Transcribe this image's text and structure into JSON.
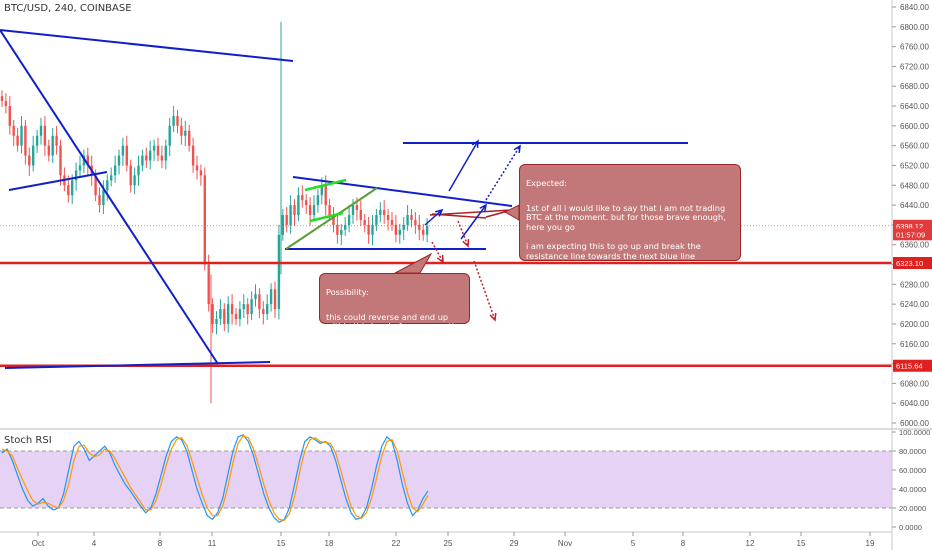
{
  "header": {
    "title": "BTC/USD, 240, COINBASE"
  },
  "indicator": {
    "title": "Stoch RSI"
  },
  "chart_data": [
    {
      "type": "candlestick",
      "symbol": "BTC/USD",
      "x_ticks": [
        {
          "label": "Oct",
          "bar": 38
        },
        {
          "label": "4",
          "bar": 94
        },
        {
          "label": "8",
          "bar": 160
        },
        {
          "label": "11",
          "bar": 212
        },
        {
          "label": "15",
          "bar": 281
        },
        {
          "label": "18",
          "bar": 329
        },
        {
          "label": "22",
          "bar": 396
        },
        {
          "label": "25",
          "bar": 448
        },
        {
          "label": "29",
          "bar": 514
        },
        {
          "label": "Nov",
          "bar": 565
        },
        {
          "label": "5",
          "bar": 633
        },
        {
          "label": "8",
          "bar": 683
        },
        {
          "label": "12",
          "bar": 750
        },
        {
          "label": "15",
          "bar": 801
        },
        {
          "label": "19",
          "bar": 870
        }
      ],
      "y_ticks": [
        6000,
        6040,
        6080,
        6120,
        6160,
        6200,
        6240,
        6280,
        6320,
        6360,
        6400,
        6440,
        6480,
        6520,
        6560,
        6600,
        6640,
        6680,
        6720,
        6760,
        6800,
        6840
      ],
      "ylim": [
        5990,
        6850
      ],
      "price_labels": [
        {
          "value": 6398.12,
          "text": "6398.12",
          "color": "#e23b3b"
        },
        {
          "value": 6381,
          "text": "01:57:09",
          "color": "#e23b3b"
        },
        {
          "value": 6323.1,
          "text": "6323.10",
          "color": "#e01f1f"
        },
        {
          "value": 6115.64,
          "text": "6115.64",
          "color": "#e01f1f"
        }
      ],
      "horizontal_levels": [
        6323.1,
        6115.64
      ],
      "candle_closes": [
        6650,
        6640,
        6600,
        6580,
        6560,
        6600,
        6540,
        6520,
        6560,
        6580,
        6600,
        6560,
        6540,
        6580,
        6560,
        6500,
        6480,
        6460,
        6490,
        6510,
        6520,
        6540,
        6520,
        6500,
        6460,
        6440,
        6470,
        6490,
        6500,
        6520,
        6540,
        6560,
        6520,
        6480,
        6500,
        6520,
        6540,
        6530,
        6550,
        6560,
        6540,
        6530,
        6560,
        6600,
        6620,
        6600,
        6580,
        6590,
        6560,
        6520,
        6510,
        6500,
        6320,
        6240,
        6200,
        6210,
        6230,
        6200,
        6240,
        6220,
        6210,
        6230,
        6240,
        6220,
        6250,
        6260,
        6230,
        6220,
        6240,
        6270,
        6230,
        6380,
        6420,
        6400,
        6440,
        6420,
        6460,
        6450,
        6440,
        6420,
        6440,
        6460,
        6480,
        6440,
        6420,
        6400,
        6380,
        6390,
        6400,
        6420,
        6440,
        6430,
        6410,
        6400,
        6380,
        6400,
        6420,
        6430,
        6420,
        6410,
        6400,
        6380,
        6390,
        6400,
        6420,
        6410,
        6400,
        6390,
        6380,
        6398
      ],
      "drawings": {
        "green_flag": [
          [
            6384,
            6468
          ],
          [
            6447,
            6477
          ],
          [
            6424,
            6447
          ]
        ],
        "projections": {
          "expected_target": 6570,
          "possible_low": 6215
        }
      },
      "annotations": [
        {
          "name": "expected",
          "title": "Expected:",
          "text": "1st of all i would like to say that i am not trading BTC at the moment. but for those brave enough, here you go\n\ni am expecting this to go up and break the resistance line towards the next blue line\n\nalso Stoch RSI has is recovering from the oversold area so some buys seems to be coming in"
        },
        {
          "name": "possibility",
          "title": "Possibility:",
          "text": "this could reverse and end up within this box before we see the next rally up if it does come here i would be back in"
        }
      ]
    },
    {
      "type": "line",
      "name": "Stoch RSI",
      "ylim": [
        0,
        100
      ],
      "y_ticks": [
        0,
        20,
        40,
        60,
        80,
        100
      ],
      "y_tick_labels": [
        "0.0000",
        "20.0000",
        "40.0000",
        "60.0000",
        "80.0000",
        "100.0000"
      ],
      "band": [
        20,
        80
      ],
      "series": [
        {
          "color": "#2196f3",
          "values": [
            78,
            82,
            70,
            55,
            40,
            28,
            22,
            25,
            30,
            22,
            18,
            20,
            35,
            60,
            85,
            90,
            82,
            70,
            75,
            80,
            85,
            78,
            65,
            55,
            45,
            38,
            30,
            22,
            15,
            20,
            35,
            55,
            75,
            90,
            95,
            92,
            80,
            60,
            40,
            25,
            12,
            8,
            15,
            30,
            55,
            80,
            95,
            97,
            90,
            75,
            55,
            35,
            20,
            10,
            5,
            8,
            20,
            45,
            70,
            90,
            95,
            92,
            88,
            90,
            85,
            70,
            50,
            30,
            15,
            8,
            10,
            20,
            40,
            65,
            85,
            95,
            90,
            70,
            45,
            25,
            12,
            18,
            30,
            38
          ]
        },
        {
          "color": "#ff9800",
          "values": [
            82,
            80,
            75,
            62,
            50,
            38,
            28,
            24,
            26,
            25,
            22,
            20,
            28,
            45,
            70,
            85,
            86,
            78,
            74,
            76,
            82,
            80,
            72,
            62,
            52,
            42,
            34,
            26,
            18,
            18,
            28,
            45,
            65,
            82,
            92,
            94,
            86,
            70,
            52,
            34,
            20,
            12,
            12,
            22,
            42,
            68,
            88,
            96,
            94,
            82,
            65,
            45,
            28,
            15,
            8,
            7,
            14,
            32,
            58,
            80,
            92,
            94,
            90,
            89,
            88,
            78,
            60,
            40,
            22,
            12,
            9,
            15,
            30,
            52,
            75,
            90,
            92,
            80,
            58,
            36,
            20,
            16,
            24,
            33
          ]
        }
      ]
    }
  ]
}
